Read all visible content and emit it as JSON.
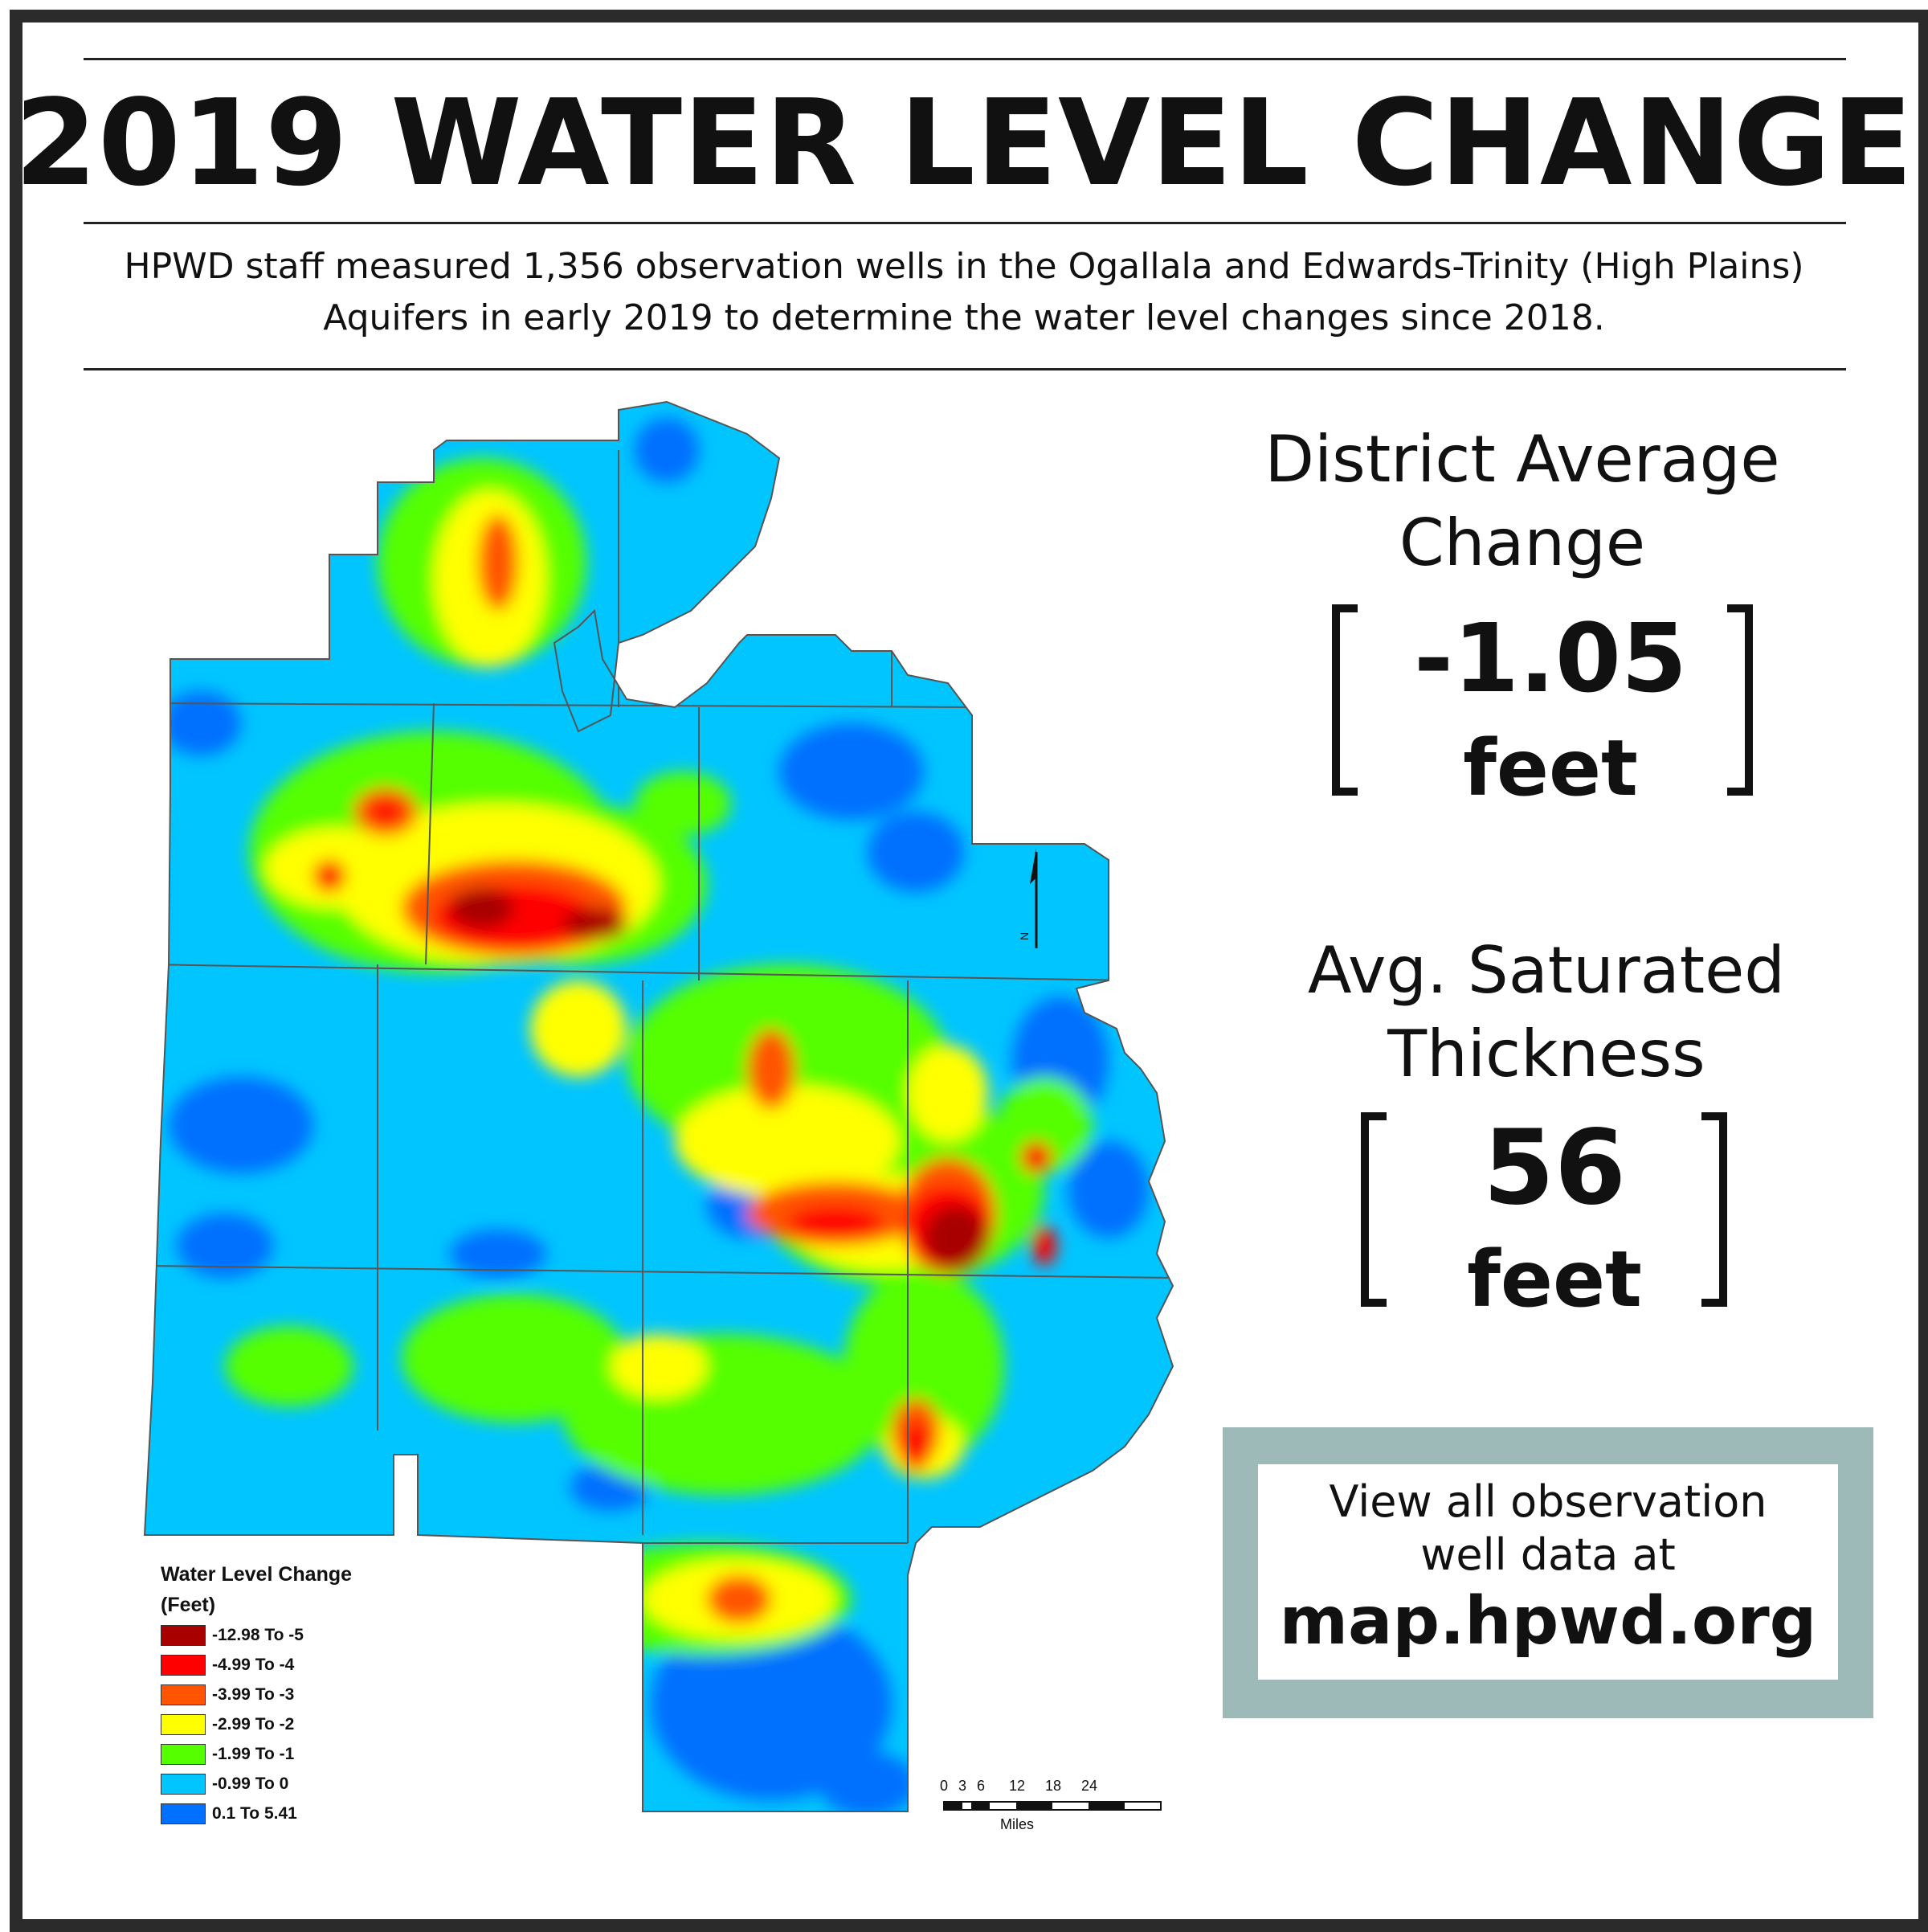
{
  "header": {
    "title": "2019 WATER LEVEL CHANGE",
    "subtitle_line1": "HPWD staff measured 1,356 observation wells in the Ogallala and Edwards-Trinity (High Plains)",
    "subtitle_line2": "Aquifers in early 2019 to determine the water level changes since 2018."
  },
  "stats": {
    "average_change": {
      "label_line1": "District Average",
      "label_line2": "Change",
      "value": "-1.05",
      "unit": "feet"
    },
    "saturated_thickness": {
      "label_line1": "Avg. Saturated",
      "label_line2": "Thickness",
      "value": "56",
      "unit": "feet"
    }
  },
  "link_box": {
    "line1": "View all observation",
    "line2": "well data at",
    "url": "map.hpwd.org"
  },
  "legend": {
    "title": "Water Level Change",
    "unit": "(Feet)",
    "classes": [
      {
        "label": "-12.98 To -5",
        "color": "#a80000"
      },
      {
        "label": "-4.99 To -4",
        "color": "#ff0000"
      },
      {
        "label": "-3.99 To -3",
        "color": "#ff5500"
      },
      {
        "label": "-2.99 To -2",
        "color": "#ffff00"
      },
      {
        "label": "-1.99 To -1",
        "color": "#55ff00"
      },
      {
        "label": "-0.99 To 0",
        "color": "#00c5ff"
      },
      {
        "label": "0.1 To 5.41",
        "color": "#0070ff"
      }
    ]
  },
  "scale_bar": {
    "ticks": [
      "0",
      "3",
      "6",
      "12",
      "18",
      "24"
    ],
    "unit": "Miles"
  },
  "north_arrow": {
    "label": "N"
  },
  "colors": {
    "frame": "#2b2b2b",
    "link_box_bg": "#9db9b8"
  }
}
